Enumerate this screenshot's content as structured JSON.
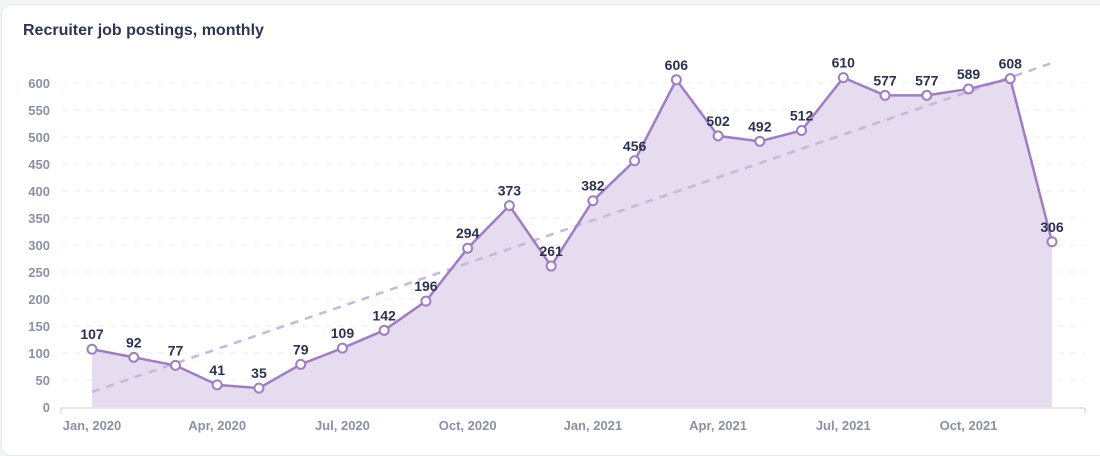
{
  "chart_data": {
    "type": "area",
    "title": "Recruiter job postings, monthly",
    "xlabel": "",
    "ylabel": "",
    "ylim": [
      0,
      600
    ],
    "yticks": [
      0,
      50,
      100,
      150,
      200,
      250,
      300,
      350,
      400,
      450,
      500,
      550,
      600
    ],
    "grid": true,
    "x": [
      "Jan 2020",
      "Feb 2020",
      "Mar 2020",
      "Apr 2020",
      "May 2020",
      "Jun 2020",
      "Jul 2020",
      "Aug 2020",
      "Sep 2020",
      "Oct 2020",
      "Nov 2020",
      "Dec 2020",
      "Jan 2021",
      "Feb 2021",
      "Mar 2021",
      "Apr 2021",
      "May 2021",
      "Jun 2021",
      "Jul 2021",
      "Aug 2021",
      "Sep 2021",
      "Oct 2021",
      "Nov 2021",
      "Dec 2021"
    ],
    "xticks": [
      {
        "index": 0,
        "label": "Jan, 2020"
      },
      {
        "index": 3,
        "label": "Apr, 2020"
      },
      {
        "index": 6,
        "label": "Jul, 2020"
      },
      {
        "index": 9,
        "label": "Oct, 2020"
      },
      {
        "index": 12,
        "label": "Jan, 2021"
      },
      {
        "index": 15,
        "label": "Apr, 2021"
      },
      {
        "index": 18,
        "label": "Jul, 2021"
      },
      {
        "index": 21,
        "label": "Oct, 2021"
      }
    ],
    "series": [
      {
        "name": "Recruiter job postings",
        "values": [
          107,
          92,
          77,
          41,
          35,
          79,
          109,
          142,
          196,
          294,
          373,
          261,
          382,
          456,
          606,
          502,
          492,
          512,
          610,
          577,
          577,
          589,
          608,
          306
        ]
      }
    ],
    "trendline": {
      "start": 28,
      "end": 637
    },
    "colors": {
      "line": "#a07cc5",
      "fill": "#e6dcef",
      "trend": "#c9b5de",
      "text": "#2b3150"
    }
  }
}
